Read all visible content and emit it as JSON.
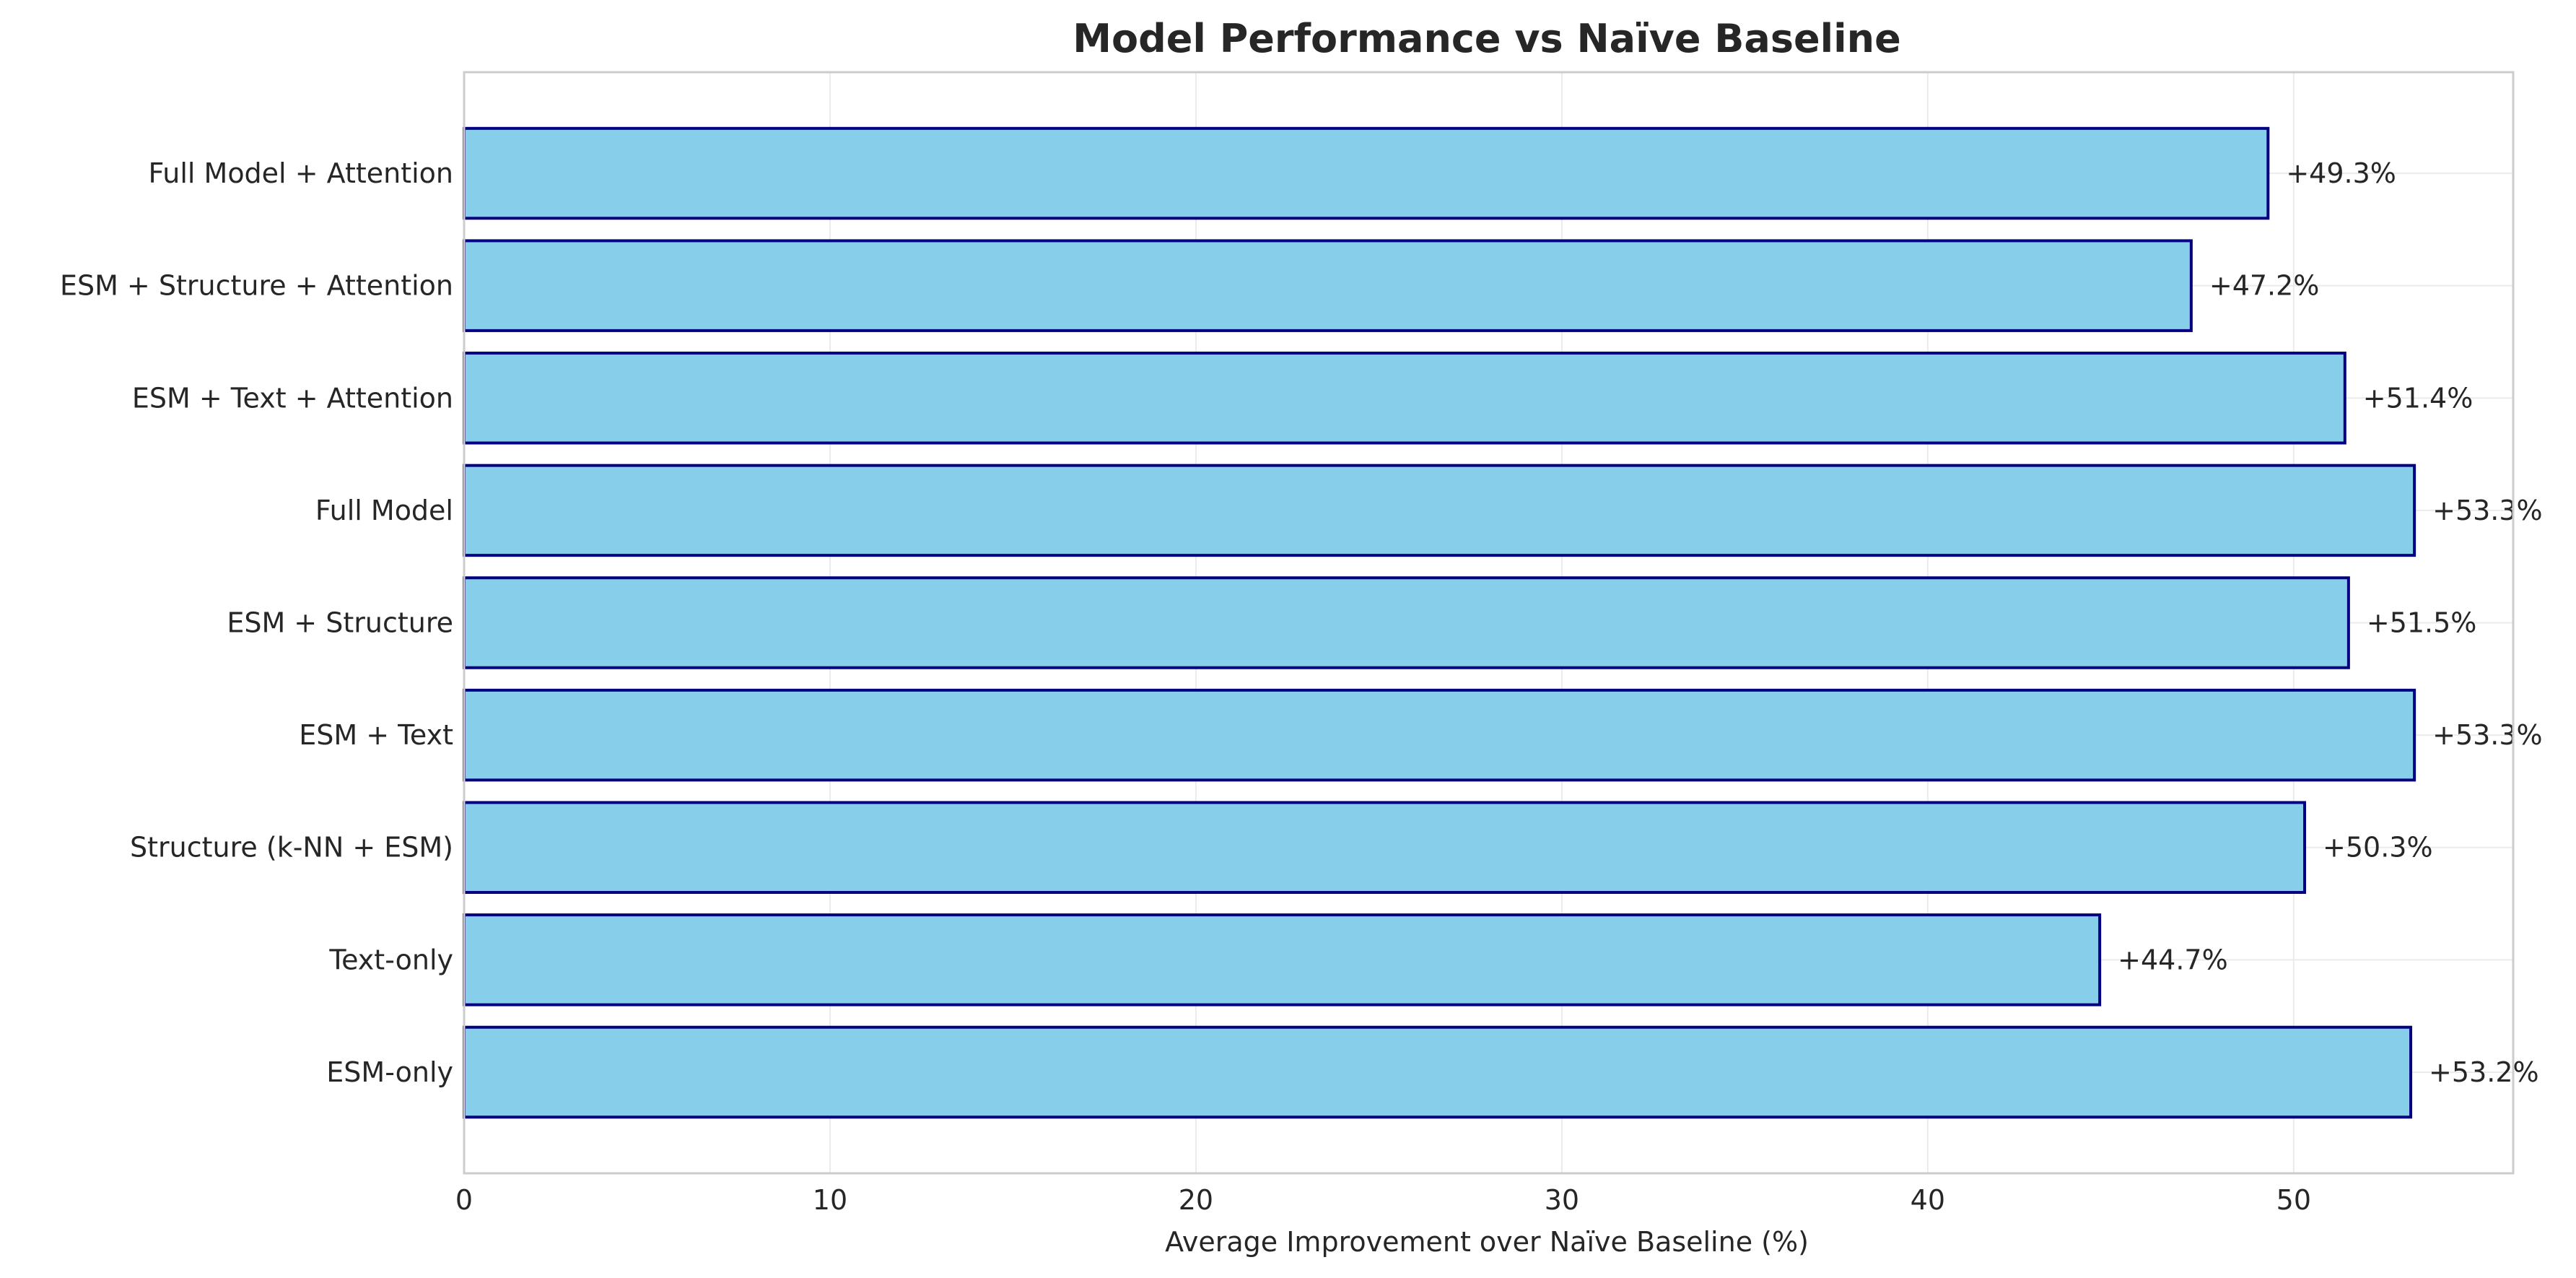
{
  "chart_data": {
    "type": "bar",
    "orientation": "horizontal",
    "title": "Model Performance vs Naïve Baseline",
    "xlabel": "Average Improvement over Naïve Baseline (%)",
    "ylabel": "",
    "xlim": [
      0,
      56
    ],
    "xticks": [
      0,
      10,
      20,
      30,
      40,
      50
    ],
    "grid": true,
    "categories": [
      "Full Model + Attention",
      "ESM + Structure + Attention",
      "ESM + Text + Attention",
      "Full Model",
      "ESM + Structure",
      "ESM + Text",
      "Structure (k-NN + ESM)",
      "Text-only",
      "ESM-only"
    ],
    "values": [
      49.3,
      47.2,
      51.4,
      53.3,
      51.5,
      53.3,
      50.3,
      44.7,
      53.2
    ],
    "data_labels": [
      "+49.3%",
      "+47.2%",
      "+51.4%",
      "+53.3%",
      "+51.5%",
      "+53.3%",
      "+50.3%",
      "+44.7%",
      "+53.2%"
    ],
    "colors": {
      "bar_fill": "#87CEEB",
      "bar_edge": "#000080"
    }
  }
}
